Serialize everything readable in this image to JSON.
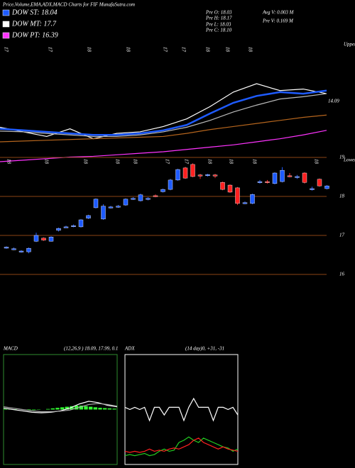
{
  "header": {
    "title": "Price,Volume,EMA,ADX,MACD Charts for FIF MunafaSutra.com"
  },
  "legend": [
    {
      "label": "DOW ST: 18.04",
      "color": "#1e5bff"
    },
    {
      "label": "DOW MT: 17.7",
      "color": "#ffffff"
    },
    {
      "label": "DOW PT: 16.39",
      "color": "#ff33ff"
    }
  ],
  "quotes": [
    "Pre  O: 18.03",
    "Pre  H: 18.17",
    "Pre  L: 18.03",
    "Pre  C: 18.10"
  ],
  "volume": [
    "Avg V: 0.003 M",
    "Pre  V: 0.169 M"
  ],
  "date_labels_top": [
    "17",
    "17",
    "18",
    "18",
    "17",
    "17",
    "18",
    "18",
    "18"
  ],
  "date_labels_bottom": [
    "18",
    "18",
    "18",
    "18",
    "18",
    "17",
    "17",
    "18",
    "18",
    "18",
    "18"
  ],
  "chart_data": [
    {
      "type": "line",
      "axis_labels": [
        "Upper",
        "Lower"
      ],
      "ylim": [
        13.3,
        14.84
      ],
      "yticks": [
        14.09
      ],
      "series": [
        {
          "color": "#ffffff",
          "values": [
            13.75,
            13.69,
            13.63,
            13.73,
            13.6,
            13.67,
            13.69,
            13.76,
            13.86,
            14.02,
            14.21,
            14.32,
            14.23,
            14.25,
            14.19
          ]
        },
        {
          "color": "#1e5bff",
          "values": [
            13.73,
            13.71,
            13.69,
            13.67,
            13.65,
            13.65,
            13.67,
            13.71,
            13.78,
            13.93,
            14.07,
            14.16,
            14.21,
            14.19,
            14.23
          ]
        },
        {
          "color": "#bbbbbb",
          "values": [
            13.7,
            13.69,
            13.67,
            13.65,
            13.63,
            13.63,
            13.65,
            13.69,
            13.75,
            13.84,
            13.95,
            14.04,
            14.12,
            14.15,
            14.19
          ]
        },
        {
          "color": "#b5651d",
          "values": [
            13.56,
            13.57,
            13.58,
            13.59,
            13.6,
            13.61,
            13.62,
            13.63,
            13.67,
            13.72,
            13.76,
            13.8,
            13.84,
            13.88,
            13.91
          ]
        },
        {
          "color": "#ff33ff",
          "values": [
            13.3,
            13.32,
            13.34,
            13.36,
            13.37,
            13.39,
            13.41,
            13.43,
            13.46,
            13.49,
            13.52,
            13.56,
            13.6,
            13.65,
            13.71
          ]
        }
      ]
    },
    {
      "type": "candlestick",
      "ylim": [
        15.8,
        19.1
      ],
      "yticks": [
        16,
        17,
        18,
        19
      ],
      "grid": true,
      "grid_color": "#8b4513",
      "up_color": "#1e5bff",
      "down_color": "#ff2020",
      "open": [
        16.68,
        16.64,
        16.58,
        16.58,
        16.85,
        16.93,
        16.85,
        17.13,
        17.21,
        17.23,
        17.22,
        17.44,
        17.71,
        17.42,
        17.71,
        17.73,
        17.78,
        17.93,
        17.89,
        17.93,
        18.02,
        18.12,
        18.18,
        18.42,
        18.73,
        18.82,
        18.55,
        18.55,
        18.55,
        18.36,
        18.29,
        18.22,
        17.82,
        17.82,
        18.36,
        18.38,
        18.33,
        18.38,
        18.53,
        18.49,
        18.6,
        18.18,
        18.44,
        18.2
      ],
      "high": [
        16.72,
        16.69,
        16.62,
        16.69,
        17.07,
        16.95,
        16.98,
        17.2,
        17.25,
        17.28,
        17.42,
        17.53,
        17.95,
        17.8,
        17.76,
        17.78,
        17.95,
        17.98,
        18.07,
        17.98,
        18.05,
        18.2,
        18.45,
        18.71,
        18.76,
        18.85,
        18.58,
        18.58,
        18.58,
        18.38,
        18.31,
        18.24,
        17.87,
        18.07,
        18.42,
        18.42,
        18.62,
        18.75,
        18.6,
        18.55,
        18.62,
        18.25,
        18.46,
        18.29
      ],
      "low": [
        16.66,
        16.62,
        16.56,
        16.54,
        16.83,
        16.86,
        16.84,
        17.1,
        17.19,
        17.21,
        17.2,
        17.42,
        17.69,
        17.4,
        17.69,
        17.71,
        17.76,
        17.91,
        17.87,
        17.9,
        17.98,
        18.1,
        18.16,
        18.4,
        18.45,
        18.49,
        18.45,
        18.51,
        18.47,
        18.16,
        18.09,
        17.78,
        17.8,
        17.8,
        18.33,
        18.33,
        18.31,
        18.36,
        18.49,
        18.45,
        18.33,
        18.15,
        18.25,
        18.18
      ],
      "close": [
        16.7,
        16.66,
        16.6,
        16.67,
        17.0,
        16.88,
        16.96,
        17.18,
        17.22,
        17.25,
        17.4,
        17.51,
        17.93,
        17.75,
        17.73,
        17.75,
        17.93,
        17.95,
        18.04,
        17.95,
        18.0,
        18.18,
        18.42,
        18.69,
        18.47,
        18.51,
        18.53,
        18.56,
        18.53,
        18.18,
        18.11,
        17.82,
        17.84,
        18.05,
        18.38,
        18.36,
        18.6,
        18.67,
        18.51,
        18.51,
        18.36,
        18.2,
        18.27,
        18.27
      ]
    },
    {
      "type": "macd",
      "title": "MACD",
      "subtitle": "(12,26,9 ) 18.09, 17.99, 0.1",
      "ylim": [
        -2,
        2
      ],
      "frame_color": "#2e8b2e",
      "series": [
        {
          "color": "#ffffff",
          "values": [
            0.05,
            0.0,
            -0.05,
            -0.1,
            -0.12,
            -0.1,
            -0.05,
            0.05,
            0.2,
            0.3,
            0.25,
            0.15,
            0.1
          ]
        },
        {
          "color": "#aaaaaa",
          "values": [
            0.1,
            0.05,
            0.0,
            -0.05,
            -0.08,
            -0.08,
            -0.06,
            -0.02,
            0.08,
            0.18,
            0.22,
            0.18,
            0.12
          ]
        }
      ],
      "histogram": {
        "color": "#33ff33",
        "values": [
          0.02,
          0.02,
          0.01,
          0.0,
          -0.01,
          -0.02,
          -0.02,
          -0.01,
          0.0,
          0.02,
          0.04,
          0.06,
          0.08,
          0.1,
          0.12,
          0.14,
          0.14,
          0.12,
          0.1,
          0.08,
          0.06,
          0.05,
          0.04,
          0.03
        ]
      }
    },
    {
      "type": "line",
      "title": "ADX",
      "subtitle": "(14 day)0, +31, -31",
      "ylim": [
        0,
        100
      ],
      "frame_color": "#ffffff",
      "series": [
        {
          "color": "#ffffff",
          "values": [
            52,
            50,
            52,
            50,
            52,
            40,
            52,
            52,
            45,
            52,
            52,
            52,
            40,
            52,
            60,
            52,
            52,
            52,
            40,
            52,
            52,
            50,
            52,
            45
          ]
        },
        {
          "color": "#22cc22",
          "values": [
            8,
            9,
            8,
            9,
            10,
            8,
            9,
            12,
            14,
            12,
            13,
            20,
            22,
            25,
            22,
            20,
            24,
            22,
            20,
            18,
            16,
            15,
            12,
            14
          ]
        },
        {
          "color": "#ff2020",
          "values": [
            12,
            11,
            12,
            11,
            12,
            14,
            12,
            13,
            12,
            14,
            15,
            14,
            16,
            18,
            22,
            24,
            20,
            18,
            16,
            14,
            16,
            14,
            13,
            12
          ]
        }
      ]
    }
  ]
}
